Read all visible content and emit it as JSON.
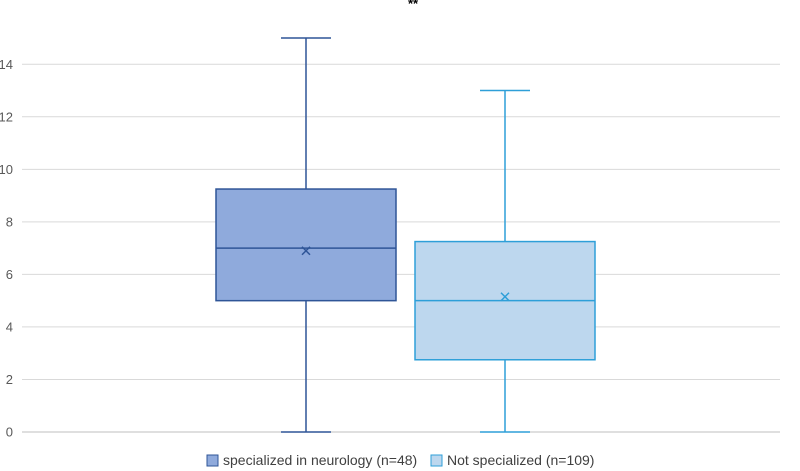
{
  "chart_data": {
    "type": "box",
    "annotation": "**",
    "ylim": [
      0,
      15
    ],
    "yticks": [
      0,
      2,
      4,
      6,
      8,
      10,
      12,
      14
    ],
    "grid": true,
    "legend_position": "bottom",
    "series": [
      {
        "name": "specialized in neurology (n=48)",
        "min": 0,
        "q1": 5,
        "median": 7,
        "q3": 9.25,
        "max": 15,
        "mean": 6.9,
        "fill": "#8faadc",
        "stroke": "#2f5597"
      },
      {
        "name": "Not specialized (n=109)",
        "min": 0,
        "q1": 2.75,
        "median": 5,
        "q3": 7.25,
        "max": 13,
        "mean": 5.15,
        "fill": "#bdd7ee",
        "stroke": "#2e9fd8"
      }
    ]
  }
}
